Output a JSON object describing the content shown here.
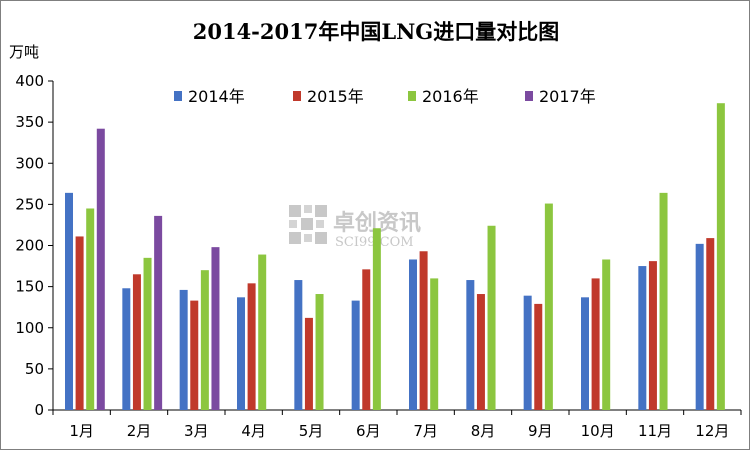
{
  "chart_data": {
    "type": "bar",
    "title": "2014-2017年中国LNG进口量对比图",
    "ylabel": "万吨",
    "xlabel": "",
    "ylim": [
      0,
      400
    ],
    "yticks": [
      0,
      50,
      100,
      150,
      200,
      250,
      300,
      350,
      400
    ],
    "categories": [
      "1月",
      "2月",
      "3月",
      "4月",
      "5月",
      "6月",
      "7月",
      "8月",
      "9月",
      "10月",
      "11月",
      "12月"
    ],
    "series": [
      {
        "name": "2014年",
        "color": "#4472c4",
        "values": [
          264,
          148,
          146,
          137,
          158,
          133,
          183,
          158,
          139,
          137,
          175,
          202
        ]
      },
      {
        "name": "2015年",
        "color": "#c0392b",
        "values": [
          211,
          165,
          133,
          154,
          112,
          171,
          193,
          141,
          129,
          160,
          181,
          209
        ]
      },
      {
        "name": "2016年",
        "color": "#8cc63f",
        "values": [
          245,
          185,
          170,
          189,
          141,
          221,
          160,
          224,
          251,
          183,
          264,
          373
        ]
      },
      {
        "name": "2017年",
        "color": "#7b4aa0",
        "values": [
          342,
          236,
          198,
          null,
          null,
          null,
          null,
          null,
          null,
          null,
          null,
          null
        ]
      }
    ],
    "legend_position": "top",
    "grid": false
  },
  "watermark": {
    "text": "卓创资讯",
    "subtext": "SCI99.COM"
  }
}
